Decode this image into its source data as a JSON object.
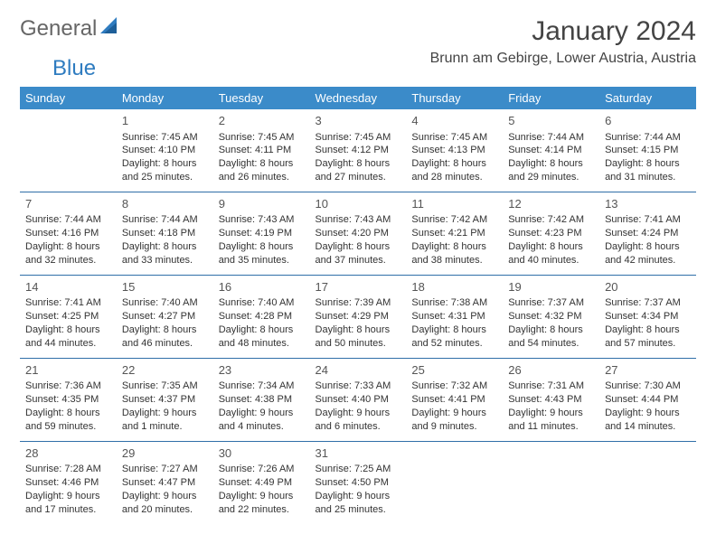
{
  "logo": {
    "text1": "General",
    "text2": "Blue"
  },
  "header": {
    "month_title": "January 2024",
    "location": "Brunn am Gebirge, Lower Austria, Austria"
  },
  "colors": {
    "header_bg": "#3b8bc9",
    "header_text": "#ffffff",
    "row_divider": "#2f6fa8",
    "logo_accent": "#2f7cc0",
    "body_text": "#333333"
  },
  "day_names": [
    "Sunday",
    "Monday",
    "Tuesday",
    "Wednesday",
    "Thursday",
    "Friday",
    "Saturday"
  ],
  "weeks": [
    [
      null,
      {
        "n": "1",
        "sr": "Sunrise: 7:45 AM",
        "ss": "Sunset: 4:10 PM",
        "d1": "Daylight: 8 hours",
        "d2": "and 25 minutes."
      },
      {
        "n": "2",
        "sr": "Sunrise: 7:45 AM",
        "ss": "Sunset: 4:11 PM",
        "d1": "Daylight: 8 hours",
        "d2": "and 26 minutes."
      },
      {
        "n": "3",
        "sr": "Sunrise: 7:45 AM",
        "ss": "Sunset: 4:12 PM",
        "d1": "Daylight: 8 hours",
        "d2": "and 27 minutes."
      },
      {
        "n": "4",
        "sr": "Sunrise: 7:45 AM",
        "ss": "Sunset: 4:13 PM",
        "d1": "Daylight: 8 hours",
        "d2": "and 28 minutes."
      },
      {
        "n": "5",
        "sr": "Sunrise: 7:44 AM",
        "ss": "Sunset: 4:14 PM",
        "d1": "Daylight: 8 hours",
        "d2": "and 29 minutes."
      },
      {
        "n": "6",
        "sr": "Sunrise: 7:44 AM",
        "ss": "Sunset: 4:15 PM",
        "d1": "Daylight: 8 hours",
        "d2": "and 31 minutes."
      }
    ],
    [
      {
        "n": "7",
        "sr": "Sunrise: 7:44 AM",
        "ss": "Sunset: 4:16 PM",
        "d1": "Daylight: 8 hours",
        "d2": "and 32 minutes."
      },
      {
        "n": "8",
        "sr": "Sunrise: 7:44 AM",
        "ss": "Sunset: 4:18 PM",
        "d1": "Daylight: 8 hours",
        "d2": "and 33 minutes."
      },
      {
        "n": "9",
        "sr": "Sunrise: 7:43 AM",
        "ss": "Sunset: 4:19 PM",
        "d1": "Daylight: 8 hours",
        "d2": "and 35 minutes."
      },
      {
        "n": "10",
        "sr": "Sunrise: 7:43 AM",
        "ss": "Sunset: 4:20 PM",
        "d1": "Daylight: 8 hours",
        "d2": "and 37 minutes."
      },
      {
        "n": "11",
        "sr": "Sunrise: 7:42 AM",
        "ss": "Sunset: 4:21 PM",
        "d1": "Daylight: 8 hours",
        "d2": "and 38 minutes."
      },
      {
        "n": "12",
        "sr": "Sunrise: 7:42 AM",
        "ss": "Sunset: 4:23 PM",
        "d1": "Daylight: 8 hours",
        "d2": "and 40 minutes."
      },
      {
        "n": "13",
        "sr": "Sunrise: 7:41 AM",
        "ss": "Sunset: 4:24 PM",
        "d1": "Daylight: 8 hours",
        "d2": "and 42 minutes."
      }
    ],
    [
      {
        "n": "14",
        "sr": "Sunrise: 7:41 AM",
        "ss": "Sunset: 4:25 PM",
        "d1": "Daylight: 8 hours",
        "d2": "and 44 minutes."
      },
      {
        "n": "15",
        "sr": "Sunrise: 7:40 AM",
        "ss": "Sunset: 4:27 PM",
        "d1": "Daylight: 8 hours",
        "d2": "and 46 minutes."
      },
      {
        "n": "16",
        "sr": "Sunrise: 7:40 AM",
        "ss": "Sunset: 4:28 PM",
        "d1": "Daylight: 8 hours",
        "d2": "and 48 minutes."
      },
      {
        "n": "17",
        "sr": "Sunrise: 7:39 AM",
        "ss": "Sunset: 4:29 PM",
        "d1": "Daylight: 8 hours",
        "d2": "and 50 minutes."
      },
      {
        "n": "18",
        "sr": "Sunrise: 7:38 AM",
        "ss": "Sunset: 4:31 PM",
        "d1": "Daylight: 8 hours",
        "d2": "and 52 minutes."
      },
      {
        "n": "19",
        "sr": "Sunrise: 7:37 AM",
        "ss": "Sunset: 4:32 PM",
        "d1": "Daylight: 8 hours",
        "d2": "and 54 minutes."
      },
      {
        "n": "20",
        "sr": "Sunrise: 7:37 AM",
        "ss": "Sunset: 4:34 PM",
        "d1": "Daylight: 8 hours",
        "d2": "and 57 minutes."
      }
    ],
    [
      {
        "n": "21",
        "sr": "Sunrise: 7:36 AM",
        "ss": "Sunset: 4:35 PM",
        "d1": "Daylight: 8 hours",
        "d2": "and 59 minutes."
      },
      {
        "n": "22",
        "sr": "Sunrise: 7:35 AM",
        "ss": "Sunset: 4:37 PM",
        "d1": "Daylight: 9 hours",
        "d2": "and 1 minute."
      },
      {
        "n": "23",
        "sr": "Sunrise: 7:34 AM",
        "ss": "Sunset: 4:38 PM",
        "d1": "Daylight: 9 hours",
        "d2": "and 4 minutes."
      },
      {
        "n": "24",
        "sr": "Sunrise: 7:33 AM",
        "ss": "Sunset: 4:40 PM",
        "d1": "Daylight: 9 hours",
        "d2": "and 6 minutes."
      },
      {
        "n": "25",
        "sr": "Sunrise: 7:32 AM",
        "ss": "Sunset: 4:41 PM",
        "d1": "Daylight: 9 hours",
        "d2": "and 9 minutes."
      },
      {
        "n": "26",
        "sr": "Sunrise: 7:31 AM",
        "ss": "Sunset: 4:43 PM",
        "d1": "Daylight: 9 hours",
        "d2": "and 11 minutes."
      },
      {
        "n": "27",
        "sr": "Sunrise: 7:30 AM",
        "ss": "Sunset: 4:44 PM",
        "d1": "Daylight: 9 hours",
        "d2": "and 14 minutes."
      }
    ],
    [
      {
        "n": "28",
        "sr": "Sunrise: 7:28 AM",
        "ss": "Sunset: 4:46 PM",
        "d1": "Daylight: 9 hours",
        "d2": "and 17 minutes."
      },
      {
        "n": "29",
        "sr": "Sunrise: 7:27 AM",
        "ss": "Sunset: 4:47 PM",
        "d1": "Daylight: 9 hours",
        "d2": "and 20 minutes."
      },
      {
        "n": "30",
        "sr": "Sunrise: 7:26 AM",
        "ss": "Sunset: 4:49 PM",
        "d1": "Daylight: 9 hours",
        "d2": "and 22 minutes."
      },
      {
        "n": "31",
        "sr": "Sunrise: 7:25 AM",
        "ss": "Sunset: 4:50 PM",
        "d1": "Daylight: 9 hours",
        "d2": "and 25 minutes."
      },
      null,
      null,
      null
    ]
  ]
}
